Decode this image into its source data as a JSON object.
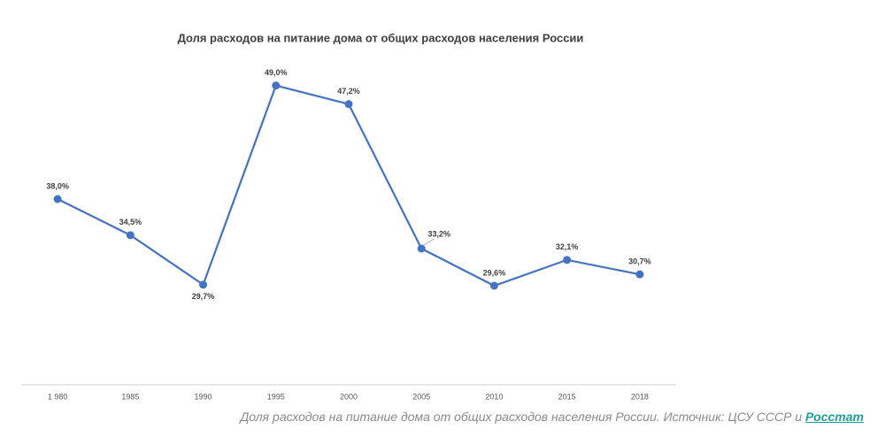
{
  "chart_data": {
    "type": "line",
    "title": "Доля расходов на питание дома от общих расходов населения России",
    "categories": [
      "1 980",
      "1985",
      "1990",
      "1995",
      "2000",
      "2005",
      "2010",
      "2015",
      "2018"
    ],
    "series": [
      {
        "name": "Доля расходов на питание",
        "color": "#4472c4",
        "values": [
          38.0,
          34.5,
          29.7,
          49.0,
          47.2,
          33.2,
          29.6,
          32.1,
          30.7
        ],
        "value_labels": [
          "38,0%",
          "34,5%",
          "29,7%",
          "49,0%",
          "47,2%",
          "33,2%",
          "29,6%",
          "32,1%",
          "30,7%"
        ]
      }
    ],
    "ylim": [
      20,
      50
    ]
  },
  "caption": {
    "text": "Доля расходов на питание дома от общих расходов населения России. Источник: ЦСУ СССР и ",
    "link": "Росстат"
  }
}
